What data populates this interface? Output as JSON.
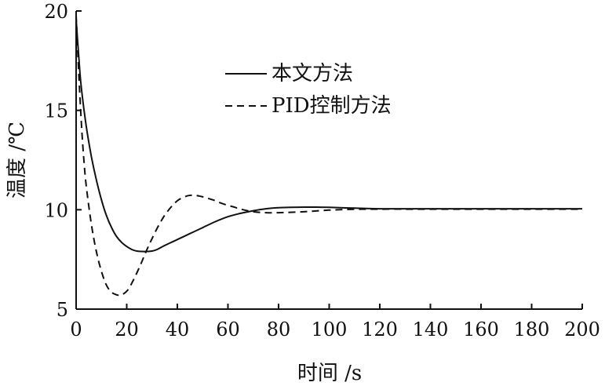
{
  "chart_data": {
    "type": "line",
    "title": "",
    "xlabel": "时间 /s",
    "ylabel": "温度 /℃",
    "xlim": [
      0,
      200
    ],
    "ylim": [
      5,
      20
    ],
    "xticks": [
      0,
      20,
      40,
      60,
      80,
      100,
      120,
      140,
      160,
      180,
      200
    ],
    "yticks": [
      5,
      10,
      15,
      20
    ],
    "grid": false,
    "legend_position": "top-center",
    "series": [
      {
        "name": "本文方法",
        "style": "solid",
        "x": [
          0,
          1,
          2,
          4,
          6,
          8,
          10,
          12,
          14,
          16,
          18,
          20,
          22,
          24,
          26,
          28,
          30,
          32,
          35,
          40,
          45,
          50,
          55,
          60,
          65,
          70,
          75,
          80,
          85,
          90,
          95,
          100,
          110,
          120,
          140,
          160,
          180,
          200
        ],
        "values": [
          19.6,
          17.8,
          16.2,
          14.2,
          12.7,
          11.5,
          10.5,
          9.7,
          9.1,
          8.65,
          8.35,
          8.15,
          8.0,
          7.92,
          7.9,
          7.9,
          7.92,
          8.0,
          8.2,
          8.5,
          8.8,
          9.1,
          9.4,
          9.65,
          9.82,
          9.95,
          10.05,
          10.1,
          10.12,
          10.13,
          10.13,
          10.12,
          10.08,
          10.05,
          10.05,
          10.05,
          10.05,
          10.05
        ]
      },
      {
        "name": "PID控制方法",
        "style": "dashed",
        "x": [
          0,
          1,
          2,
          3,
          4,
          6,
          8,
          10,
          12,
          14,
          16,
          17,
          18,
          20,
          22,
          25,
          28,
          30,
          33,
          36,
          40,
          44,
          47,
          50,
          54,
          58,
          62,
          66,
          70,
          75,
          80,
          90,
          100,
          110,
          120,
          140,
          160,
          180,
          200
        ],
        "values": [
          19.8,
          17.0,
          14.5,
          12.6,
          11.2,
          9.3,
          7.9,
          6.9,
          6.2,
          5.85,
          5.72,
          5.7,
          5.72,
          5.9,
          6.3,
          7.1,
          8.0,
          8.55,
          9.3,
          9.9,
          10.45,
          10.7,
          10.72,
          10.65,
          10.5,
          10.3,
          10.15,
          10.0,
          9.9,
          9.85,
          9.85,
          9.9,
          9.98,
          10.02,
          10.03,
          10.03,
          10.03,
          10.03,
          10.03
        ]
      }
    ]
  }
}
